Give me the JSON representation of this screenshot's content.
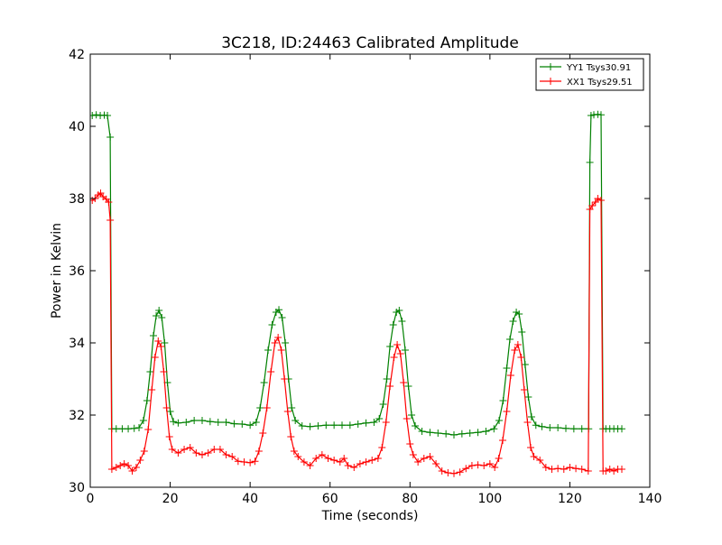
{
  "chart_data": {
    "type": "line",
    "title": "3C218, ID:24463 Calibrated Amplitude",
    "xlabel": "Time (seconds)",
    "ylabel": "Power in Kelvin",
    "xlim": [
      0,
      140
    ],
    "ylim": [
      30,
      42
    ],
    "xticks": [
      "0",
      "20",
      "40",
      "60",
      "80",
      "100",
      "120",
      "140"
    ],
    "yticks": [
      "30",
      "32",
      "34",
      "36",
      "38",
      "40",
      "42"
    ],
    "grid": false,
    "legend_position": "top-right",
    "marker": "+",
    "series": [
      {
        "name": "YY1 Tsys30.91",
        "color": "#008000",
        "points": [
          [
            0.5,
            40.3
          ],
          [
            1.5,
            40.32
          ],
          [
            2.5,
            40.3
          ],
          [
            3.5,
            40.31
          ],
          [
            4.3,
            40.3
          ],
          [
            5.0,
            39.7
          ],
          [
            5.4,
            31.62
          ],
          [
            6.5,
            31.62
          ],
          [
            8,
            31.62
          ],
          [
            9.5,
            31.62
          ],
          [
            11,
            31.63
          ],
          [
            12.2,
            31.65
          ],
          [
            13.3,
            31.85
          ],
          [
            14.2,
            32.4
          ],
          [
            15.0,
            33.2
          ],
          [
            15.8,
            34.2
          ],
          [
            16.5,
            34.75
          ],
          [
            17.2,
            34.9
          ],
          [
            17.9,
            34.7
          ],
          [
            18.6,
            34.0
          ],
          [
            19.3,
            32.9
          ],
          [
            20.0,
            32.1
          ],
          [
            20.8,
            31.82
          ],
          [
            22,
            31.78
          ],
          [
            24,
            31.8
          ],
          [
            26,
            31.85
          ],
          [
            28,
            31.85
          ],
          [
            30,
            31.82
          ],
          [
            32,
            31.8
          ],
          [
            34,
            31.8
          ],
          [
            36,
            31.76
          ],
          [
            38,
            31.75
          ],
          [
            40,
            31.72
          ],
          [
            41.5,
            31.8
          ],
          [
            42.5,
            32.2
          ],
          [
            43.5,
            32.9
          ],
          [
            44.5,
            33.8
          ],
          [
            45.5,
            34.5
          ],
          [
            46.5,
            34.85
          ],
          [
            47.2,
            34.92
          ],
          [
            48,
            34.7
          ],
          [
            48.8,
            34.0
          ],
          [
            49.6,
            33.0
          ],
          [
            50.4,
            32.2
          ],
          [
            51.3,
            31.85
          ],
          [
            53,
            31.7
          ],
          [
            55,
            31.68
          ],
          [
            57,
            31.7
          ],
          [
            59,
            31.72
          ],
          [
            61,
            31.72
          ],
          [
            63,
            31.72
          ],
          [
            65,
            31.72
          ],
          [
            67,
            31.75
          ],
          [
            69,
            31.78
          ],
          [
            71,
            31.8
          ],
          [
            72.3,
            31.9
          ],
          [
            73.3,
            32.3
          ],
          [
            74.2,
            33.0
          ],
          [
            75.0,
            33.9
          ],
          [
            75.8,
            34.5
          ],
          [
            76.6,
            34.85
          ],
          [
            77.3,
            34.9
          ],
          [
            78.0,
            34.6
          ],
          [
            78.8,
            33.8
          ],
          [
            79.6,
            32.8
          ],
          [
            80.4,
            32.0
          ],
          [
            81.3,
            31.7
          ],
          [
            83,
            31.55
          ],
          [
            85,
            31.52
          ],
          [
            87,
            31.5
          ],
          [
            89,
            31.48
          ],
          [
            91,
            31.45
          ],
          [
            93,
            31.48
          ],
          [
            95,
            31.5
          ],
          [
            97,
            31.52
          ],
          [
            99,
            31.55
          ],
          [
            101,
            31.62
          ],
          [
            102.3,
            31.85
          ],
          [
            103.3,
            32.4
          ],
          [
            104.2,
            33.3
          ],
          [
            105.0,
            34.1
          ],
          [
            105.8,
            34.6
          ],
          [
            106.6,
            34.85
          ],
          [
            107.3,
            34.8
          ],
          [
            108.0,
            34.3
          ],
          [
            108.8,
            33.4
          ],
          [
            109.6,
            32.5
          ],
          [
            110.4,
            31.95
          ],
          [
            111.5,
            31.72
          ],
          [
            113,
            31.68
          ],
          [
            115,
            31.65
          ],
          [
            117,
            31.65
          ],
          [
            119,
            31.63
          ],
          [
            121,
            31.62
          ],
          [
            123,
            31.62
          ],
          [
            124.7,
            31.62
          ],
          [
            125.0,
            39.0
          ],
          [
            125.3,
            40.3
          ],
          [
            126,
            40.32
          ],
          [
            127,
            40.33
          ],
          [
            127.8,
            40.32
          ],
          [
            128.3,
            31.62
          ],
          [
            129,
            31.62
          ],
          [
            130,
            31.62
          ],
          [
            131,
            31.62
          ],
          [
            132,
            31.62
          ],
          [
            133,
            31.62
          ]
        ]
      },
      {
        "name": "XX1 Tsys29.51",
        "color": "#ff0000",
        "points": [
          [
            0.5,
            37.95
          ],
          [
            1.2,
            38.0
          ],
          [
            2.0,
            38.1
          ],
          [
            2.6,
            38.15
          ],
          [
            3.2,
            38.05
          ],
          [
            4.0,
            37.98
          ],
          [
            4.6,
            37.9
          ],
          [
            5.0,
            37.4
          ],
          [
            5.4,
            30.5
          ],
          [
            6.5,
            30.55
          ],
          [
            7.5,
            30.6
          ],
          [
            8.5,
            30.65
          ],
          [
            9.5,
            30.6
          ],
          [
            10.5,
            30.45
          ],
          [
            11.5,
            30.55
          ],
          [
            12.5,
            30.75
          ],
          [
            13.5,
            31.0
          ],
          [
            14.5,
            31.6
          ],
          [
            15.4,
            32.7
          ],
          [
            16.2,
            33.6
          ],
          [
            17.0,
            34.05
          ],
          [
            17.7,
            33.9
          ],
          [
            18.4,
            33.2
          ],
          [
            19.1,
            32.2
          ],
          [
            19.8,
            31.4
          ],
          [
            20.5,
            31.05
          ],
          [
            22,
            30.95
          ],
          [
            23.5,
            31.05
          ],
          [
            25,
            31.1
          ],
          [
            26.5,
            30.95
          ],
          [
            28,
            30.9
          ],
          [
            29.5,
            30.95
          ],
          [
            31,
            31.05
          ],
          [
            32.5,
            31.05
          ],
          [
            34,
            30.9
          ],
          [
            35.5,
            30.85
          ],
          [
            37,
            30.72
          ],
          [
            38.5,
            30.7
          ],
          [
            40,
            30.68
          ],
          [
            41.2,
            30.72
          ],
          [
            42.2,
            31.0
          ],
          [
            43.2,
            31.5
          ],
          [
            44.2,
            32.2
          ],
          [
            45.2,
            33.2
          ],
          [
            46.2,
            34.0
          ],
          [
            47.0,
            34.15
          ],
          [
            47.8,
            33.8
          ],
          [
            48.6,
            33.0
          ],
          [
            49.4,
            32.1
          ],
          [
            50.2,
            31.4
          ],
          [
            51.0,
            31.0
          ],
          [
            52,
            30.85
          ],
          [
            53.5,
            30.7
          ],
          [
            55,
            30.6
          ],
          [
            56.5,
            30.8
          ],
          [
            58,
            30.9
          ],
          [
            59.5,
            30.8
          ],
          [
            61,
            30.75
          ],
          [
            62.5,
            30.7
          ],
          [
            63.5,
            30.8
          ],
          [
            64.5,
            30.6
          ],
          [
            66,
            30.55
          ],
          [
            67.5,
            30.65
          ],
          [
            69,
            30.7
          ],
          [
            70.5,
            30.75
          ],
          [
            72.0,
            30.8
          ],
          [
            73.0,
            31.1
          ],
          [
            74.0,
            31.8
          ],
          [
            75.0,
            32.8
          ],
          [
            76.0,
            33.6
          ],
          [
            76.8,
            33.95
          ],
          [
            77.6,
            33.7
          ],
          [
            78.4,
            32.9
          ],
          [
            79.2,
            31.9
          ],
          [
            80.0,
            31.2
          ],
          [
            80.8,
            30.9
          ],
          [
            82,
            30.7
          ],
          [
            83.5,
            30.8
          ],
          [
            85,
            30.85
          ],
          [
            86.5,
            30.65
          ],
          [
            88,
            30.45
          ],
          [
            89.5,
            30.4
          ],
          [
            91,
            30.38
          ],
          [
            92.5,
            30.42
          ],
          [
            94,
            30.52
          ],
          [
            95.5,
            30.6
          ],
          [
            97,
            30.62
          ],
          [
            98.5,
            30.6
          ],
          [
            100,
            30.65
          ],
          [
            101.2,
            30.55
          ],
          [
            102.2,
            30.8
          ],
          [
            103.2,
            31.3
          ],
          [
            104.2,
            32.1
          ],
          [
            105.2,
            33.1
          ],
          [
            106.2,
            33.8
          ],
          [
            107.0,
            33.95
          ],
          [
            107.8,
            33.6
          ],
          [
            108.6,
            32.7
          ],
          [
            109.4,
            31.8
          ],
          [
            110.2,
            31.1
          ],
          [
            111.0,
            30.85
          ],
          [
            112.5,
            30.75
          ],
          [
            114,
            30.55
          ],
          [
            115.5,
            30.5
          ],
          [
            117,
            30.52
          ],
          [
            118.5,
            30.5
          ],
          [
            120,
            30.55
          ],
          [
            121.5,
            30.52
          ],
          [
            123,
            30.5
          ],
          [
            124.6,
            30.45
          ],
          [
            125.0,
            37.7
          ],
          [
            125.6,
            37.8
          ],
          [
            126.4,
            37.9
          ],
          [
            127.0,
            38.0
          ],
          [
            127.8,
            37.95
          ],
          [
            128.3,
            30.45
          ],
          [
            129,
            30.45
          ],
          [
            130,
            30.5
          ],
          [
            131,
            30.45
          ],
          [
            132,
            30.5
          ],
          [
            133,
            30.5
          ]
        ]
      }
    ]
  }
}
